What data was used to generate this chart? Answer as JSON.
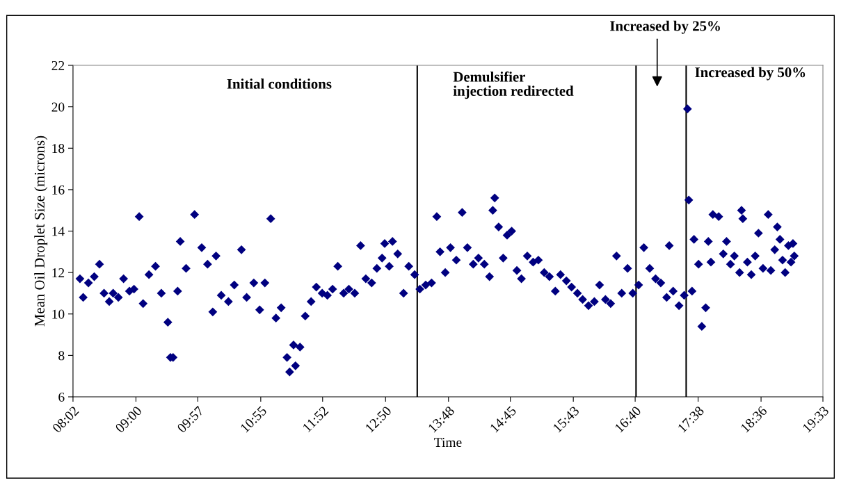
{
  "chart_data": {
    "type": "scatter",
    "xlabel": "Time",
    "ylabel": "Mean Oil Droplet Size (microns)",
    "marker": "diamond",
    "grid": false,
    "legend": false,
    "xlim": [
      8.0333,
      19.55
    ],
    "ylim": [
      6,
      22
    ],
    "yticks": [
      6,
      8,
      10,
      12,
      14,
      16,
      18,
      20,
      22
    ],
    "xticks": [
      {
        "value": 8.0333,
        "label": "08:02"
      },
      {
        "value": 9.0,
        "label": "09:00"
      },
      {
        "value": 9.95,
        "label": "09:57"
      },
      {
        "value": 10.9167,
        "label": "10:55"
      },
      {
        "value": 11.8667,
        "label": "11:52"
      },
      {
        "value": 12.8333,
        "label": "12:50"
      },
      {
        "value": 13.8,
        "label": "13:48"
      },
      {
        "value": 14.75,
        "label": "14:45"
      },
      {
        "value": 15.7167,
        "label": "15:43"
      },
      {
        "value": 16.6667,
        "label": "16:40"
      },
      {
        "value": 17.6333,
        "label": "17:38"
      },
      {
        "value": 18.6,
        "label": "18:36"
      },
      {
        "value": 19.55,
        "label": "19:33"
      }
    ],
    "ref_lines": [
      {
        "axis": "x",
        "value": 13.32,
        "label": "Demulsifier\ninjection redirected",
        "color": "#000000"
      },
      {
        "axis": "x",
        "value": 16.68,
        "color": "#000000"
      },
      {
        "axis": "x",
        "value": 17.45,
        "label": "Increased by 50%",
        "color": "#000000"
      }
    ],
    "annotations": [
      "Initial conditions",
      "Increased by 25%"
    ],
    "series": [
      {
        "color": "#000080",
        "x": [
          8.14,
          8.19,
          8.27,
          8.36,
          8.44,
          8.51,
          8.59,
          8.65,
          8.73,
          8.81,
          8.9,
          8.97,
          9.05,
          9.11,
          9.2,
          9.3,
          9.39,
          9.49,
          9.53,
          9.57,
          9.64,
          9.68,
          9.77,
          9.9,
          10.01,
          10.1,
          10.18,
          10.23,
          10.31,
          10.42,
          10.51,
          10.62,
          10.7,
          10.81,
          10.9,
          10.98,
          11.07,
          11.15,
          11.23,
          11.32,
          11.36,
          11.42,
          11.45,
          11.52,
          11.6,
          11.69,
          11.77,
          11.86,
          11.94,
          12.02,
          12.1,
          12.19,
          12.27,
          12.36,
          12.45,
          12.53,
          12.62,
          12.7,
          12.78,
          12.82,
          12.89,
          12.94,
          13.02,
          13.11,
          13.19,
          13.28,
          13.36,
          13.45,
          13.54,
          13.62,
          13.67,
          13.75,
          13.83,
          13.92,
          14.01,
          14.09,
          14.18,
          14.26,
          14.35,
          14.43,
          14.48,
          14.51,
          14.57,
          14.64,
          14.7,
          14.77,
          14.85,
          14.92,
          15.01,
          15.1,
          15.18,
          15.27,
          15.35,
          15.44,
          15.52,
          15.61,
          15.69,
          15.78,
          15.86,
          15.95,
          16.04,
          16.12,
          16.21,
          16.29,
          16.38,
          16.46,
          16.55,
          16.63,
          16.72,
          16.8,
          16.89,
          16.98,
          17.06,
          17.15,
          17.19,
          17.25,
          17.34,
          17.42,
          17.47,
          17.49,
          17.54,
          17.57,
          17.64,
          17.69,
          17.75,
          17.79,
          17.83,
          17.86,
          17.95,
          18.02,
          18.07,
          18.13,
          18.19,
          18.27,
          18.3,
          18.32,
          18.39,
          18.45,
          18.51,
          18.56,
          18.63,
          18.71,
          18.75,
          18.81,
          18.85,
          18.89,
          18.93,
          18.97,
          19.02,
          19.06,
          19.09,
          19.11
        ],
        "values": [
          11.7,
          10.8,
          11.5,
          11.8,
          12.4,
          11.0,
          10.6,
          11.0,
          10.8,
          11.7,
          11.1,
          11.2,
          14.7,
          10.5,
          11.9,
          12.3,
          11.0,
          9.6,
          7.9,
          7.9,
          11.1,
          13.5,
          12.2,
          14.8,
          13.2,
          12.4,
          10.1,
          12.8,
          10.9,
          10.6,
          11.4,
          13.1,
          10.8,
          11.5,
          10.2,
          11.5,
          14.6,
          9.8,
          10.3,
          7.9,
          7.2,
          8.5,
          7.5,
          8.4,
          9.9,
          10.6,
          11.3,
          11.0,
          10.9,
          11.2,
          12.3,
          11.0,
          11.2,
          11.0,
          13.3,
          11.7,
          11.5,
          12.2,
          12.7,
          13.4,
          12.3,
          13.5,
          12.9,
          11.0,
          12.3,
          11.9,
          11.2,
          11.4,
          11.5,
          14.7,
          13.0,
          12.0,
          13.2,
          12.6,
          14.9,
          13.2,
          12.4,
          12.7,
          12.4,
          11.8,
          15.0,
          15.6,
          14.2,
          12.7,
          13.8,
          14.0,
          12.1,
          11.7,
          12.8,
          12.5,
          12.6,
          12.0,
          11.8,
          11.1,
          11.9,
          11.6,
          11.3,
          11.0,
          10.7,
          10.4,
          10.6,
          11.4,
          10.7,
          10.5,
          12.8,
          11.0,
          12.2,
          11.0,
          11.4,
          13.2,
          12.2,
          11.7,
          11.5,
          10.8,
          13.3,
          11.1,
          10.4,
          10.9,
          19.9,
          15.5,
          11.1,
          13.6,
          12.4,
          9.4,
          10.3,
          13.5,
          12.5,
          14.8,
          14.7,
          12.9,
          13.5,
          12.4,
          12.8,
          12.0,
          15.0,
          14.6,
          12.5,
          11.9,
          12.8,
          13.9,
          12.2,
          14.8,
          12.1,
          13.1,
          14.2,
          13.6,
          12.6,
          12.0,
          13.3,
          12.5,
          13.4,
          12.8
        ]
      }
    ]
  }
}
